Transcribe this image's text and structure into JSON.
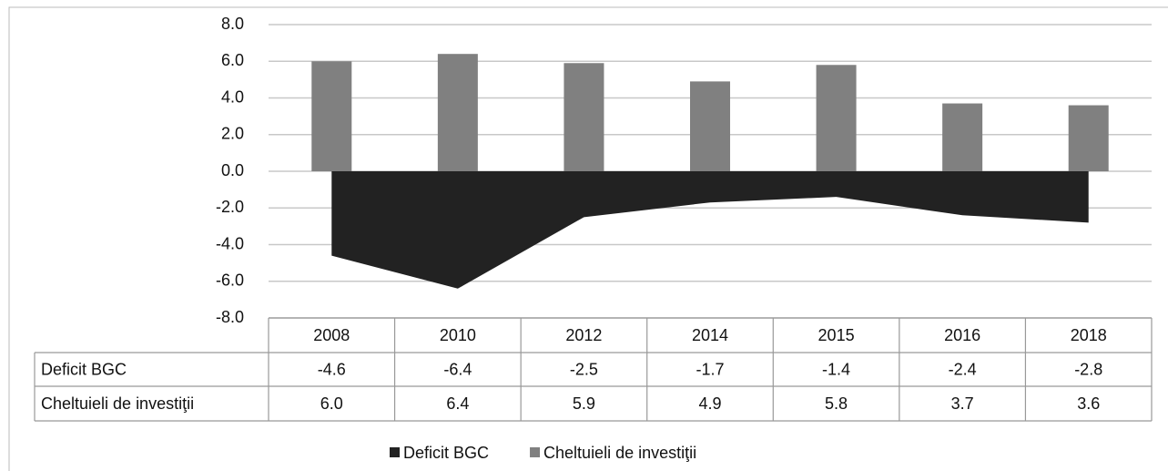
{
  "chart_data": {
    "type": "bar",
    "categories": [
      "2008",
      "2010",
      "2012",
      "2014",
      "2015",
      "2016",
      "2018"
    ],
    "series": [
      {
        "name": "Deficit BGC",
        "type": "area",
        "color": "#222222",
        "values": [
          -4.6,
          -6.4,
          -2.5,
          -1.7,
          -1.4,
          -2.4,
          -2.8
        ],
        "value_labels": [
          "-4.6",
          "-6.4",
          "-2.5",
          "-1.7",
          "-1.4",
          "-2.4",
          "-2.8"
        ]
      },
      {
        "name": "Cheltuieli de investiţii",
        "type": "bar",
        "color": "#808080",
        "values": [
          6.0,
          6.4,
          5.9,
          4.9,
          5.8,
          3.7,
          3.6
        ],
        "value_labels": [
          "6.0",
          "6.4",
          "5.9",
          "4.9",
          "5.8",
          "3.7",
          "3.6"
        ]
      }
    ],
    "ylim": [
      -8,
      8
    ],
    "yticks": [
      {
        "value": -8,
        "label": "-8.0"
      },
      {
        "value": -6,
        "label": "-6.0"
      },
      {
        "value": -4,
        "label": "-4.0"
      },
      {
        "value": -2,
        "label": "-2.0"
      },
      {
        "value": 0,
        "label": "0.0"
      },
      {
        "value": 2,
        "label": "2.0"
      },
      {
        "value": 4,
        "label": "4.0"
      },
      {
        "value": 6,
        "label": "6.0"
      },
      {
        "value": 8,
        "label": "8.0"
      }
    ],
    "grid": true,
    "legend": "bottom",
    "data_table": true
  }
}
